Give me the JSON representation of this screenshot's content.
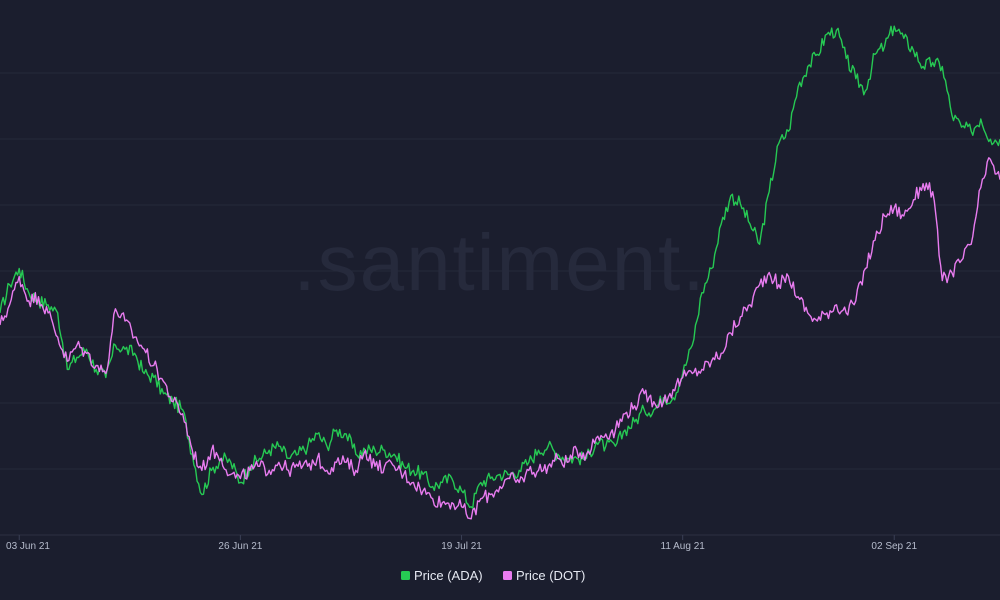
{
  "chart_data": {
    "type": "line",
    "title": "",
    "xlabel": "",
    "ylabel": "",
    "watermark": ".santiment.",
    "x_ticks": [
      "03 Jun 21",
      "26 Jun 21",
      "19 Jul 21",
      "11 Aug 21",
      "02 Sep 21"
    ],
    "x_tick_dates": [
      "2021-06-03",
      "2021-06-26",
      "2021-07-19",
      "2021-08-11",
      "2021-09-02"
    ],
    "x_range": [
      "2021-06-01",
      "2021-09-13"
    ],
    "grid": {
      "horizontal": true,
      "vertical": false
    },
    "legend_position": "bottom-center",
    "colors": {
      "background": "#1b1e2e",
      "grid": "#262a3b",
      "ada": "#26c953",
      "dot": "#e97cf0"
    },
    "series": [
      {
        "name": "Price (ADA)",
        "color": "#26c953",
        "points": [
          [
            "2021-06-01",
            0.55
          ],
          [
            "2021-06-02",
            0.62
          ],
          [
            "2021-06-03",
            0.66
          ],
          [
            "2021-06-04",
            0.6
          ],
          [
            "2021-06-05",
            0.58
          ],
          [
            "2021-06-06",
            0.57
          ],
          [
            "2021-06-07",
            0.55
          ],
          [
            "2021-06-08",
            0.41
          ],
          [
            "2021-06-09",
            0.44
          ],
          [
            "2021-06-10",
            0.46
          ],
          [
            "2021-06-11",
            0.41
          ],
          [
            "2021-06-12",
            0.39
          ],
          [
            "2021-06-13",
            0.47
          ],
          [
            "2021-06-14",
            0.46
          ],
          [
            "2021-06-15",
            0.45
          ],
          [
            "2021-06-16",
            0.4
          ],
          [
            "2021-06-17",
            0.39
          ],
          [
            "2021-06-18",
            0.35
          ],
          [
            "2021-06-19",
            0.33
          ],
          [
            "2021-06-20",
            0.31
          ],
          [
            "2021-06-21",
            0.2
          ],
          [
            "2021-06-22",
            0.1
          ],
          [
            "2021-06-23",
            0.16
          ],
          [
            "2021-06-24",
            0.19
          ],
          [
            "2021-06-25",
            0.18
          ],
          [
            "2021-06-26",
            0.13
          ],
          [
            "2021-06-27",
            0.17
          ],
          [
            "2021-06-28",
            0.19
          ],
          [
            "2021-06-29",
            0.21
          ],
          [
            "2021-06-30",
            0.22
          ],
          [
            "2021-07-01",
            0.19
          ],
          [
            "2021-07-02",
            0.2
          ],
          [
            "2021-07-03",
            0.22
          ],
          [
            "2021-07-04",
            0.25
          ],
          [
            "2021-07-05",
            0.22
          ],
          [
            "2021-07-06",
            0.26
          ],
          [
            "2021-07-07",
            0.25
          ],
          [
            "2021-07-08",
            0.2
          ],
          [
            "2021-07-09",
            0.21
          ],
          [
            "2021-07-10",
            0.21
          ],
          [
            "2021-07-11",
            0.21
          ],
          [
            "2021-07-12",
            0.2
          ],
          [
            "2021-07-13",
            0.17
          ],
          [
            "2021-07-14",
            0.16
          ],
          [
            "2021-07-15",
            0.15
          ],
          [
            "2021-07-16",
            0.12
          ],
          [
            "2021-07-17",
            0.13
          ],
          [
            "2021-07-18",
            0.14
          ],
          [
            "2021-07-19",
            0.11
          ],
          [
            "2021-07-20",
            0.07
          ],
          [
            "2021-07-21",
            0.13
          ],
          [
            "2021-07-22",
            0.14
          ],
          [
            "2021-07-23",
            0.15
          ],
          [
            "2021-07-24",
            0.15
          ],
          [
            "2021-07-25",
            0.16
          ],
          [
            "2021-07-26",
            0.18
          ],
          [
            "2021-07-27",
            0.21
          ],
          [
            "2021-07-28",
            0.22
          ],
          [
            "2021-07-29",
            0.2
          ],
          [
            "2021-07-30",
            0.19
          ],
          [
            "2021-07-31",
            0.19
          ],
          [
            "2021-08-01",
            0.19
          ],
          [
            "2021-08-02",
            0.23
          ],
          [
            "2021-08-03",
            0.22
          ],
          [
            "2021-08-04",
            0.22
          ],
          [
            "2021-08-05",
            0.26
          ],
          [
            "2021-08-06",
            0.28
          ],
          [
            "2021-08-07",
            0.31
          ],
          [
            "2021-08-08",
            0.31
          ],
          [
            "2021-08-09",
            0.34
          ],
          [
            "2021-08-10",
            0.34
          ],
          [
            "2021-08-11",
            0.4
          ],
          [
            "2021-08-12",
            0.47
          ],
          [
            "2021-08-13",
            0.6
          ],
          [
            "2021-08-14",
            0.66
          ],
          [
            "2021-08-15",
            0.77
          ],
          [
            "2021-08-16",
            0.84
          ],
          [
            "2021-08-17",
            0.82
          ],
          [
            "2021-08-18",
            0.77
          ],
          [
            "2021-08-19",
            0.72
          ],
          [
            "2021-08-20",
            0.85
          ],
          [
            "2021-08-21",
            0.97
          ],
          [
            "2021-08-22",
            1.0
          ],
          [
            "2021-08-23",
            1.11
          ],
          [
            "2021-08-24",
            1.16
          ],
          [
            "2021-08-25",
            1.19
          ],
          [
            "2021-08-26",
            1.24
          ],
          [
            "2021-08-27",
            1.25
          ],
          [
            "2021-08-28",
            1.18
          ],
          [
            "2021-08-29",
            1.13
          ],
          [
            "2021-08-30",
            1.1
          ],
          [
            "2021-08-31",
            1.19
          ],
          [
            "2021-09-01",
            1.21
          ],
          [
            "2021-09-02",
            1.26
          ],
          [
            "2021-09-03",
            1.23
          ],
          [
            "2021-09-04",
            1.2
          ],
          [
            "2021-09-05",
            1.16
          ],
          [
            "2021-09-06",
            1.17
          ],
          [
            "2021-09-07",
            1.16
          ],
          [
            "2021-09-08",
            1.04
          ],
          [
            "2021-09-09",
            1.01
          ],
          [
            "2021-09-10",
            1.0
          ],
          [
            "2021-09-11",
            1.03
          ],
          [
            "2021-09-12",
            0.98
          ],
          [
            "2021-09-13",
            0.98
          ]
        ]
      },
      {
        "name": "Price (DOT)",
        "color": "#e97cf0",
        "points": [
          [
            "2021-06-01",
            0.52
          ],
          [
            "2021-06-02",
            0.57
          ],
          [
            "2021-06-03",
            0.64
          ],
          [
            "2021-06-04",
            0.58
          ],
          [
            "2021-06-05",
            0.59
          ],
          [
            "2021-06-06",
            0.55
          ],
          [
            "2021-06-07",
            0.49
          ],
          [
            "2021-06-08",
            0.43
          ],
          [
            "2021-06-09",
            0.47
          ],
          [
            "2021-06-10",
            0.45
          ],
          [
            "2021-06-11",
            0.42
          ],
          [
            "2021-06-12",
            0.4
          ],
          [
            "2021-06-13",
            0.56
          ],
          [
            "2021-06-14",
            0.53
          ],
          [
            "2021-06-15",
            0.49
          ],
          [
            "2021-06-16",
            0.46
          ],
          [
            "2021-06-17",
            0.42
          ],
          [
            "2021-06-18",
            0.38
          ],
          [
            "2021-06-19",
            0.33
          ],
          [
            "2021-06-20",
            0.3
          ],
          [
            "2021-06-21",
            0.21
          ],
          [
            "2021-06-22",
            0.16
          ],
          [
            "2021-06-23",
            0.21
          ],
          [
            "2021-06-24",
            0.19
          ],
          [
            "2021-06-25",
            0.15
          ],
          [
            "2021-06-26",
            0.14
          ],
          [
            "2021-06-27",
            0.16
          ],
          [
            "2021-06-28",
            0.17
          ],
          [
            "2021-06-29",
            0.16
          ],
          [
            "2021-06-30",
            0.18
          ],
          [
            "2021-07-01",
            0.16
          ],
          [
            "2021-07-02",
            0.17
          ],
          [
            "2021-07-03",
            0.17
          ],
          [
            "2021-07-04",
            0.19
          ],
          [
            "2021-07-05",
            0.16
          ],
          [
            "2021-07-06",
            0.18
          ],
          [
            "2021-07-07",
            0.18
          ],
          [
            "2021-07-08",
            0.16
          ],
          [
            "2021-07-09",
            0.21
          ],
          [
            "2021-07-10",
            0.17
          ],
          [
            "2021-07-11",
            0.17
          ],
          [
            "2021-07-12",
            0.17
          ],
          [
            "2021-07-13",
            0.15
          ],
          [
            "2021-07-14",
            0.13
          ],
          [
            "2021-07-15",
            0.11
          ],
          [
            "2021-07-16",
            0.09
          ],
          [
            "2021-07-17",
            0.08
          ],
          [
            "2021-07-18",
            0.08
          ],
          [
            "2021-07-19",
            0.07
          ],
          [
            "2021-07-20",
            0.04
          ],
          [
            "2021-07-21",
            0.09
          ],
          [
            "2021-07-22",
            0.1
          ],
          [
            "2021-07-23",
            0.12
          ],
          [
            "2021-07-24",
            0.14
          ],
          [
            "2021-07-25",
            0.13
          ],
          [
            "2021-07-26",
            0.16
          ],
          [
            "2021-07-27",
            0.16
          ],
          [
            "2021-07-28",
            0.17
          ],
          [
            "2021-07-29",
            0.19
          ],
          [
            "2021-07-30",
            0.18
          ],
          [
            "2021-07-31",
            0.21
          ],
          [
            "2021-08-01",
            0.2
          ],
          [
            "2021-08-02",
            0.24
          ],
          [
            "2021-08-03",
            0.25
          ],
          [
            "2021-08-04",
            0.26
          ],
          [
            "2021-08-05",
            0.3
          ],
          [
            "2021-08-06",
            0.32
          ],
          [
            "2021-08-07",
            0.35
          ],
          [
            "2021-08-08",
            0.33
          ],
          [
            "2021-08-09",
            0.33
          ],
          [
            "2021-08-10",
            0.36
          ],
          [
            "2021-08-11",
            0.39
          ],
          [
            "2021-08-12",
            0.4
          ],
          [
            "2021-08-13",
            0.41
          ],
          [
            "2021-08-14",
            0.43
          ],
          [
            "2021-08-15",
            0.45
          ],
          [
            "2021-08-16",
            0.5
          ],
          [
            "2021-08-17",
            0.54
          ],
          [
            "2021-08-18",
            0.57
          ],
          [
            "2021-08-19",
            0.62
          ],
          [
            "2021-08-20",
            0.65
          ],
          [
            "2021-08-21",
            0.62
          ],
          [
            "2021-08-22",
            0.64
          ],
          [
            "2021-08-23",
            0.59
          ],
          [
            "2021-08-24",
            0.55
          ],
          [
            "2021-08-25",
            0.53
          ],
          [
            "2021-08-26",
            0.55
          ],
          [
            "2021-08-27",
            0.57
          ],
          [
            "2021-08-28",
            0.55
          ],
          [
            "2021-08-29",
            0.58
          ],
          [
            "2021-08-30",
            0.66
          ],
          [
            "2021-08-31",
            0.73
          ],
          [
            "2021-09-01",
            0.79
          ],
          [
            "2021-09-02",
            0.81
          ],
          [
            "2021-09-03",
            0.79
          ],
          [
            "2021-09-04",
            0.83
          ],
          [
            "2021-09-05",
            0.87
          ],
          [
            "2021-09-06",
            0.85
          ],
          [
            "2021-09-07",
            0.63
          ],
          [
            "2021-09-08",
            0.65
          ],
          [
            "2021-09-09",
            0.68
          ],
          [
            "2021-09-10",
            0.72
          ],
          [
            "2021-09-11",
            0.86
          ],
          [
            "2021-09-12",
            0.93
          ],
          [
            "2021-09-13",
            0.88
          ]
        ]
      }
    ]
  }
}
